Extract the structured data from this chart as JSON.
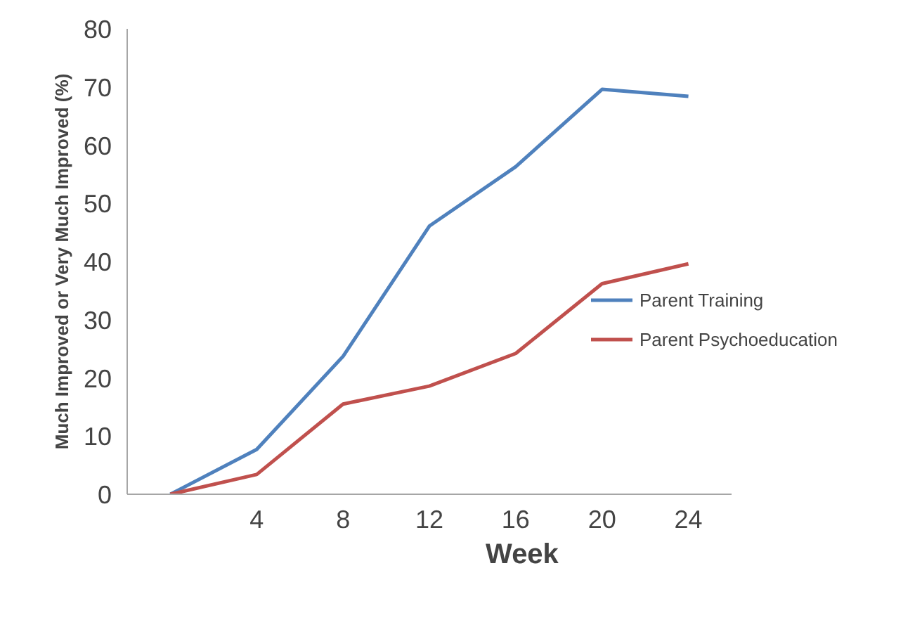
{
  "chart_data": {
    "type": "line",
    "xlabel": "Week",
    "ylabel": "Much Improved or Very Much Improved (%)",
    "x": [
      0,
      4,
      8,
      12,
      16,
      20,
      24
    ],
    "series": [
      {
        "name": "Parent Training",
        "color": "#4f81bd",
        "values": [
          0,
          7.7,
          23.7,
          46.1,
          56.3,
          69.6,
          68.4
        ]
      },
      {
        "name": "Parent Psychoeducation",
        "color": "#c0504d",
        "values": [
          0,
          3.4,
          15.5,
          18.6,
          24.2,
          36.2,
          39.6
        ]
      }
    ],
    "xlim": [
      -2,
      26
    ],
    "ylim": [
      0,
      80
    ],
    "xticks": [
      4,
      8,
      12,
      16,
      20,
      24
    ],
    "yticks": [
      0,
      10,
      20,
      30,
      40,
      50,
      60,
      70,
      80
    ],
    "grid": false,
    "legend": "right",
    "marker": "none",
    "line_style": "solid"
  }
}
